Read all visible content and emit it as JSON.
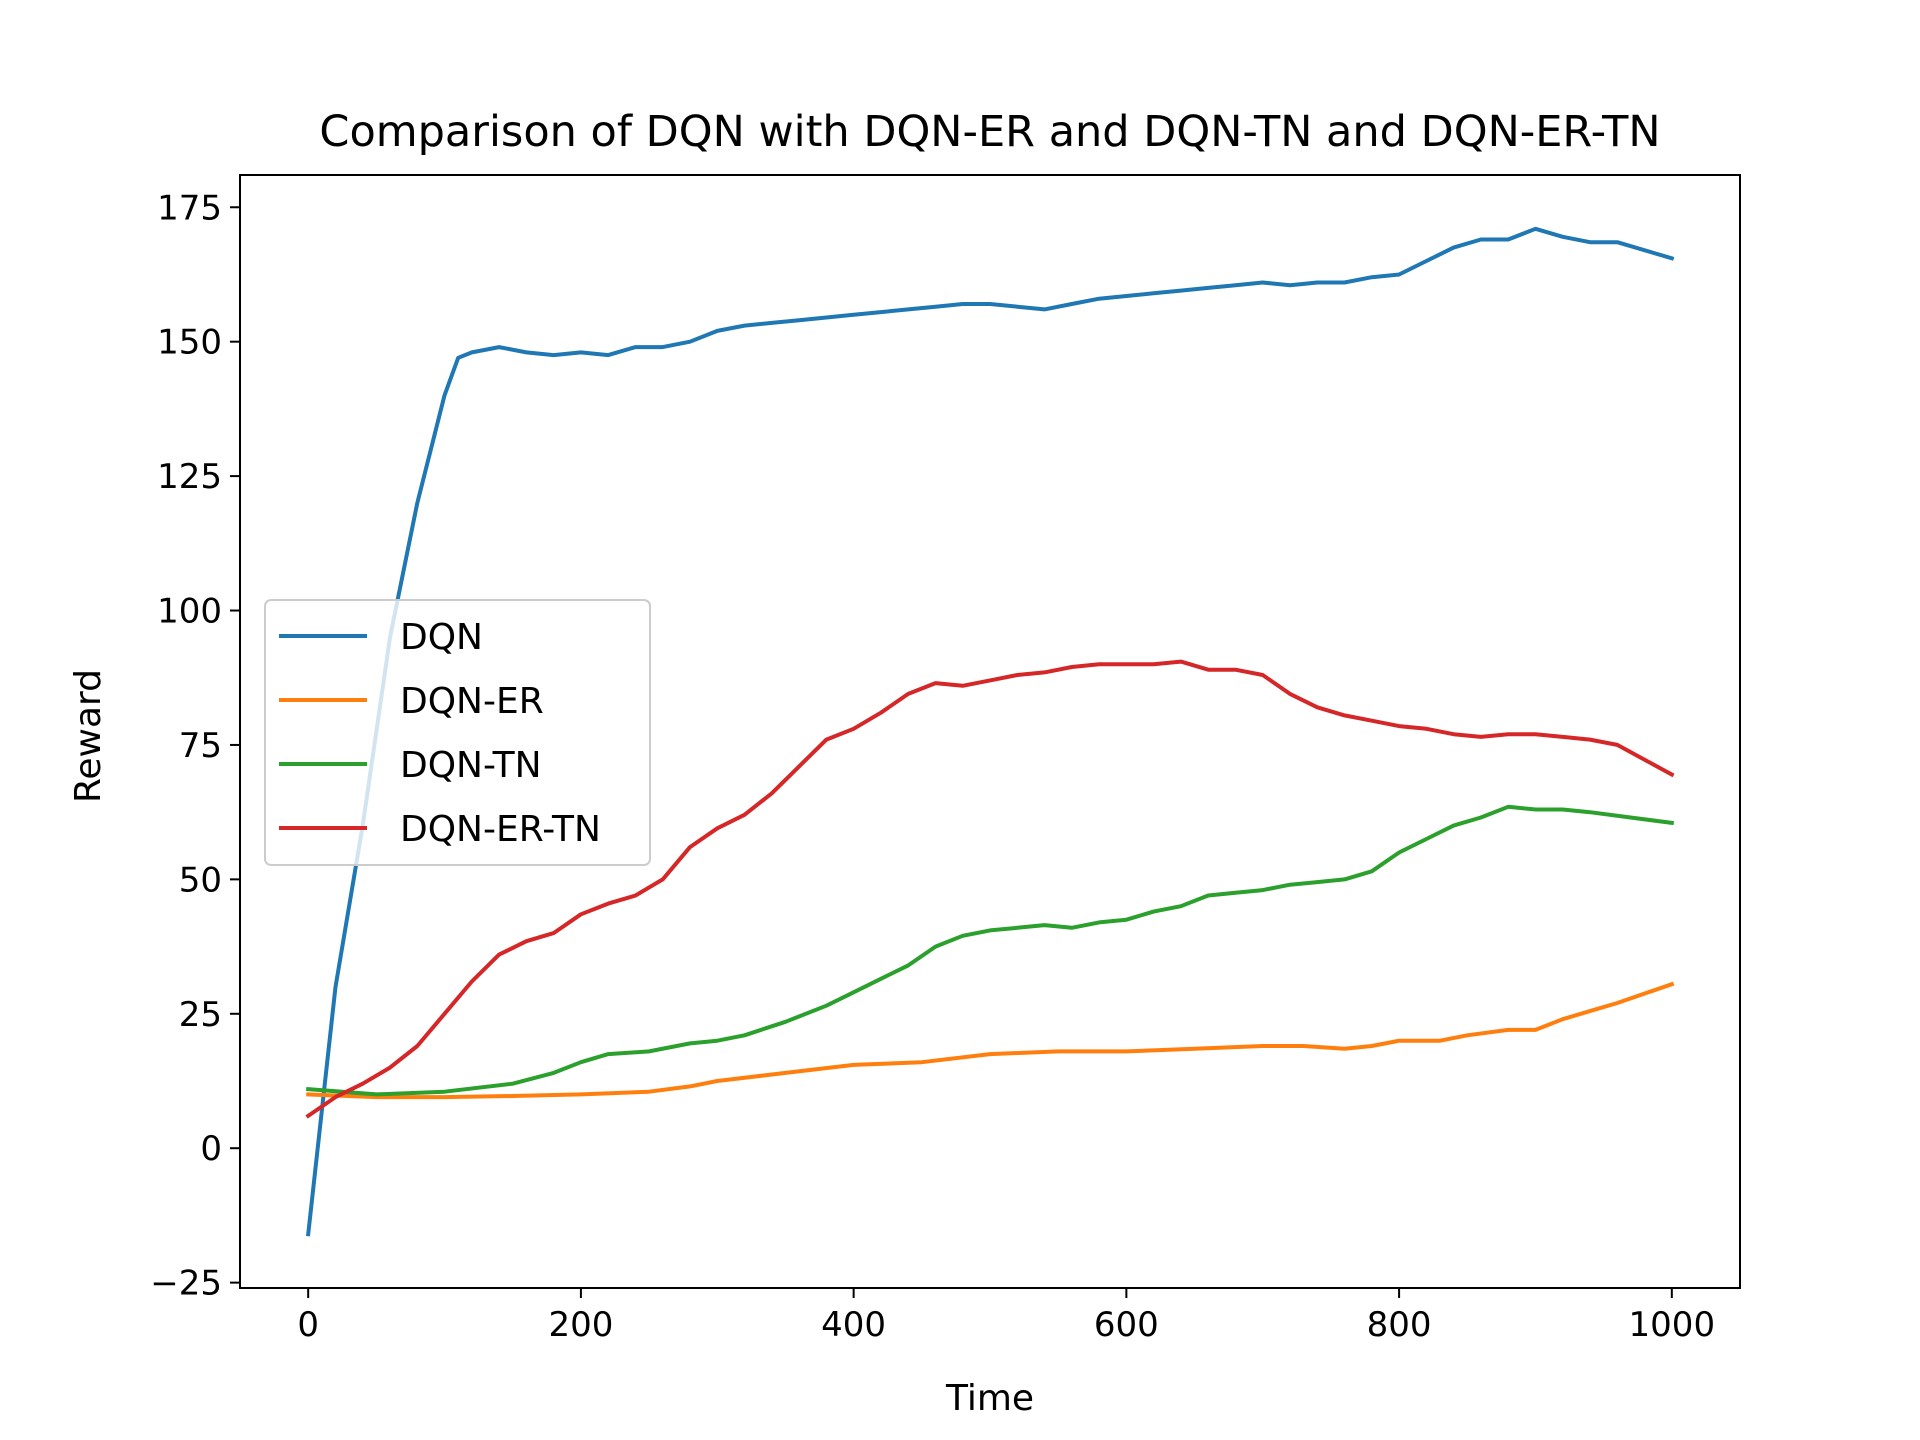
{
  "chart_data": {
    "type": "line",
    "title": "Comparison of DQN with DQN-ER and DQN-TN and DQN-ER-TN",
    "xlabel": "Time",
    "ylabel": "Reward",
    "xlim": [
      -50,
      1050
    ],
    "ylim": [
      -26,
      181
    ],
    "xticks": [
      0,
      200,
      400,
      600,
      800,
      1000
    ],
    "yticks": [
      -25,
      0,
      25,
      50,
      75,
      100,
      125,
      150,
      175
    ],
    "xtick_labels": [
      "0",
      "200",
      "400",
      "600",
      "800",
      "1000"
    ],
    "ytick_labels": [
      "−25",
      "0",
      "25",
      "50",
      "75",
      "100",
      "125",
      "150",
      "175"
    ],
    "grid": false,
    "legend_position": "center-left",
    "series": [
      {
        "name": "DQN",
        "color": "#1f77b4",
        "points": [
          [
            0,
            -16
          ],
          [
            20,
            30
          ],
          [
            40,
            60
          ],
          [
            60,
            95
          ],
          [
            80,
            120
          ],
          [
            90,
            130
          ],
          [
            100,
            140
          ],
          [
            110,
            147
          ],
          [
            120,
            148
          ],
          [
            140,
            149
          ],
          [
            160,
            148
          ],
          [
            180,
            147.5
          ],
          [
            200,
            148
          ],
          [
            220,
            147.5
          ],
          [
            240,
            149
          ],
          [
            260,
            149
          ],
          [
            280,
            150
          ],
          [
            300,
            152
          ],
          [
            320,
            153
          ],
          [
            340,
            153.5
          ],
          [
            360,
            154
          ],
          [
            380,
            154.5
          ],
          [
            400,
            155
          ],
          [
            420,
            155.5
          ],
          [
            440,
            156
          ],
          [
            460,
            156.5
          ],
          [
            480,
            157
          ],
          [
            500,
            157
          ],
          [
            520,
            156.5
          ],
          [
            540,
            156
          ],
          [
            560,
            157
          ],
          [
            580,
            158
          ],
          [
            600,
            158.5
          ],
          [
            620,
            159
          ],
          [
            640,
            159.5
          ],
          [
            660,
            160
          ],
          [
            680,
            160.5
          ],
          [
            700,
            161
          ],
          [
            720,
            160.5
          ],
          [
            740,
            161
          ],
          [
            760,
            161
          ],
          [
            780,
            162
          ],
          [
            800,
            162.5
          ],
          [
            820,
            165
          ],
          [
            840,
            167.5
          ],
          [
            860,
            169
          ],
          [
            880,
            169
          ],
          [
            900,
            171
          ],
          [
            920,
            169.5
          ],
          [
            940,
            168.5
          ],
          [
            960,
            168.5
          ],
          [
            1000,
            165.5
          ]
        ]
      },
      {
        "name": "DQN-ER",
        "color": "#ff7f0e",
        "points": [
          [
            0,
            10
          ],
          [
            50,
            9.5
          ],
          [
            100,
            9.5
          ],
          [
            150,
            9.7
          ],
          [
            200,
            10
          ],
          [
            250,
            10.5
          ],
          [
            280,
            11.5
          ],
          [
            300,
            12.5
          ],
          [
            350,
            14
          ],
          [
            400,
            15.5
          ],
          [
            450,
            16
          ],
          [
            500,
            17.5
          ],
          [
            550,
            18
          ],
          [
            600,
            18
          ],
          [
            650,
            18.5
          ],
          [
            700,
            19
          ],
          [
            730,
            19
          ],
          [
            760,
            18.5
          ],
          [
            780,
            19
          ],
          [
            800,
            20
          ],
          [
            830,
            20
          ],
          [
            850,
            21
          ],
          [
            880,
            22
          ],
          [
            900,
            22
          ],
          [
            920,
            24
          ],
          [
            940,
            25.5
          ],
          [
            960,
            27
          ],
          [
            1000,
            30.5
          ]
        ]
      },
      {
        "name": "DQN-TN",
        "color": "#2ca02c",
        "points": [
          [
            0,
            11
          ],
          [
            50,
            10
          ],
          [
            100,
            10.5
          ],
          [
            150,
            12
          ],
          [
            180,
            14
          ],
          [
            200,
            16
          ],
          [
            220,
            17.5
          ],
          [
            250,
            18
          ],
          [
            280,
            19.5
          ],
          [
            300,
            20
          ],
          [
            320,
            21
          ],
          [
            350,
            23.5
          ],
          [
            380,
            26.5
          ],
          [
            400,
            29
          ],
          [
            420,
            31.5
          ],
          [
            440,
            34
          ],
          [
            460,
            37.5
          ],
          [
            480,
            39.5
          ],
          [
            500,
            40.5
          ],
          [
            520,
            41
          ],
          [
            540,
            41.5
          ],
          [
            560,
            41
          ],
          [
            580,
            42
          ],
          [
            600,
            42.5
          ],
          [
            620,
            44
          ],
          [
            640,
            45
          ],
          [
            660,
            47
          ],
          [
            680,
            47.5
          ],
          [
            700,
            48
          ],
          [
            720,
            49
          ],
          [
            740,
            49.5
          ],
          [
            760,
            50
          ],
          [
            780,
            51.5
          ],
          [
            800,
            55
          ],
          [
            820,
            57.5
          ],
          [
            840,
            60
          ],
          [
            860,
            61.5
          ],
          [
            880,
            63.5
          ],
          [
            900,
            63
          ],
          [
            920,
            63
          ],
          [
            940,
            62.5
          ],
          [
            1000,
            60.5
          ]
        ]
      },
      {
        "name": "DQN-ER-TN",
        "color": "#d62728",
        "points": [
          [
            0,
            6
          ],
          [
            20,
            9.5
          ],
          [
            40,
            12
          ],
          [
            60,
            15
          ],
          [
            80,
            19
          ],
          [
            100,
            25
          ],
          [
            120,
            31
          ],
          [
            140,
            36
          ],
          [
            160,
            38.5
          ],
          [
            180,
            40
          ],
          [
            200,
            43.5
          ],
          [
            220,
            45.5
          ],
          [
            240,
            47
          ],
          [
            260,
            50
          ],
          [
            280,
            56
          ],
          [
            300,
            59.5
          ],
          [
            320,
            62
          ],
          [
            340,
            66
          ],
          [
            360,
            71
          ],
          [
            380,
            76
          ],
          [
            400,
            78
          ],
          [
            420,
            81
          ],
          [
            440,
            84.5
          ],
          [
            460,
            86.5
          ],
          [
            480,
            86
          ],
          [
            500,
            87
          ],
          [
            520,
            88
          ],
          [
            540,
            88.5
          ],
          [
            560,
            89.5
          ],
          [
            580,
            90
          ],
          [
            600,
            90
          ],
          [
            620,
            90
          ],
          [
            640,
            90.5
          ],
          [
            660,
            89
          ],
          [
            680,
            89
          ],
          [
            700,
            88
          ],
          [
            720,
            84.5
          ],
          [
            740,
            82
          ],
          [
            760,
            80.5
          ],
          [
            780,
            79.5
          ],
          [
            800,
            78.5
          ],
          [
            820,
            78
          ],
          [
            840,
            77
          ],
          [
            860,
            76.5
          ],
          [
            880,
            77
          ],
          [
            900,
            77
          ],
          [
            920,
            76.5
          ],
          [
            940,
            76
          ],
          [
            960,
            75
          ],
          [
            1000,
            69.5
          ]
        ]
      }
    ]
  }
}
